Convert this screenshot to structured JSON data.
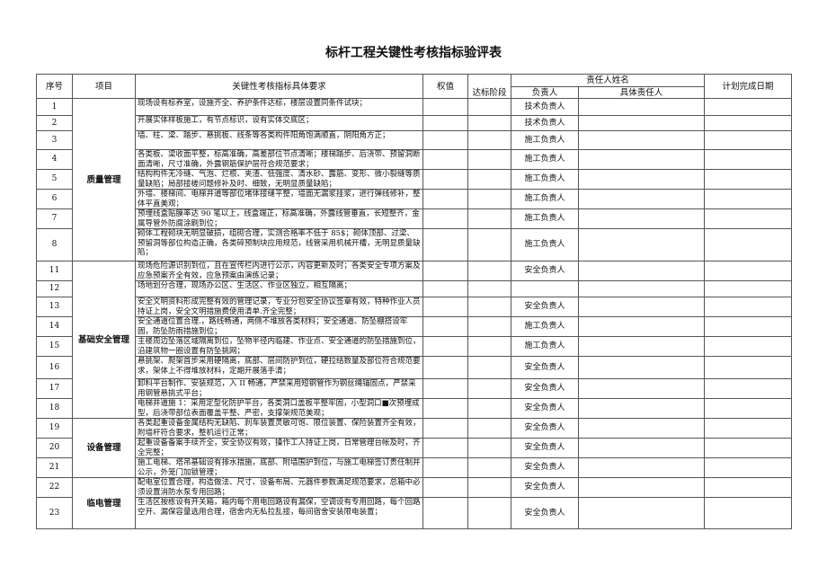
{
  "title": "标杆工程关键性考核指标验评表",
  "headers": {
    "no": "序号",
    "item": "项目",
    "req": "关键性考核指标具体要求",
    "weight": "权值",
    "stage": "达标阶段",
    "resp_group": "责任人姓名",
    "lead": "负责人",
    "specific": "具体责任人",
    "date": "计划完成日期"
  },
  "groups": [
    {
      "name": "质量管理"
    },
    {
      "name": "基础安全管理"
    },
    {
      "name": "设备管理"
    },
    {
      "name": "临电管理"
    }
  ],
  "rows": [
    {
      "no": "1",
      "req": "现场设有标养室，设施齐全、养护条件达标，楼层设置同条件试块；",
      "lead": "技术负责人"
    },
    {
      "no": "2",
      "req": "开展实体样板施工，有节点标识，设有实体交底区；",
      "lead": "技术负责人"
    },
    {
      "no": "3",
      "req": "墙、柱、梁、踏步、悬挑板、线条等各类构件阳角饱满顺直，阴阳角方正；",
      "lead": "施工负责人"
    },
    {
      "no": "4",
      "req": "各类板、梁收面平整，标高准确，高差部位节点清晰；楼梯踏步、后浇带、预留洞断面清晰，尺寸准确，外露钢筋保护层符合规范要求；",
      "lead": "施工负责人"
    },
    {
      "no": "5",
      "req": "结构构件无冷缝、气泡、烂根、夹渣、低强度、清水砂、露筋、变形、微小裂缝等质量缺陷；局部接槎问题修补及时、细致，无明显质量缺陷；",
      "lead": "施工负责人"
    },
    {
      "no": "6",
      "req": "外墙、楼梯间、电梯井道等部位堵体接缝平整，墙面无漏浆挂浆，进行弹线修补，整体平直美观；",
      "lead": "施工负责人"
    },
    {
      "no": "7",
      "req": "预埋线盒贴膜率达 90 笔以上，线盒端正，标高准确，外露线管垂直，长短整齐，金属导管外防腐涂刷到位；",
      "lead": "施工负责人"
    },
    {
      "no": "8",
      "req": "砌体工程砌块无明显破损，组砌合理，实测合格率不低于 85$；砌体顶部、过梁、预留洞等部位构造正确，各类碎预制块应用规范，线管采用机械开槽，无明显质量缺陷；",
      "lead": "施工负责人"
    },
    {
      "no": "11",
      "req": "现场危险源识别到位，且在宣传栏内进行公示，内容更新及时；各类安全专项方案及应急预案齐全有效，应急预案由演练记录；",
      "lead": "安全负责人"
    },
    {
      "no": "12",
      "req": "场地划分合理，现场办公区、生活区、作业区独立，相互隔离；",
      "lead": ""
    },
    {
      "no": "13",
      "req": "安全文明资料形成完整有效的管理记录，专业分包安全协议签章有效，特种作业人员持证上岗，安全文明措施费使用清单.齐全完整；",
      "lead": "安全负责人"
    },
    {
      "no": "14",
      "req": "安全通道位置合理.，路线畅通，两侧不堆放各类材料；安全通道、防坠棚搭设牢固，防坠防雨措施到位；",
      "lead": "施工负责人"
    },
    {
      "no": "15",
      "req": "主楼周边坠落区域隔离到位，坠物半径内临建、作业点、安全通道的防坠措施到位，沿建筑物一圈设置有防坠挑网；",
      "lead": "施工负责人"
    },
    {
      "no": "16",
      "req": "悬挑架、爬架首步采用硬隔离，底部、层间防护到位，硬拉结数量及部位符合规范要求，架体上不得堆放材料，定期开展落手清；",
      "lead": "安全负责人"
    },
    {
      "no": "17",
      "req": "卸料平台制作、安装规范，入 II 畅通，严禁采用短钢管作为钢丝绳锚固点，严禁采用钢管悬挑式平台；",
      "lead": "安全负责人"
    },
    {
      "no": "18",
      "req": "电梯井道施 1：采用定型化防护平台，各类洞口盖板平整牢固，小型洞口■次预埋成型，后浇带部位表面覆盖平整、严密，支撑架规范美观；",
      "lead": "安全负责人"
    },
    {
      "no": "19",
      "req": "各类起重设备金属结构无缺陷、刹车装置灵敏可饱、限位装置、保险装置齐全有效，附墙杆符合要求，整机运行正常；",
      "lead": "安全负责人"
    },
    {
      "no": "20",
      "req": "起重设备备案手续齐全，安全协议有效，操作工人持证上岗，日常管理台帐及时，齐全完整；",
      "lead": "安全负责人"
    },
    {
      "no": "21",
      "req": "施工电梯、塔吊基础设有排水措施，底部、附墙围护到位，与施工电梯签订责任制并公示，外笼门加锁管理；",
      "lead": "安全负责人"
    },
    {
      "no": "22",
      "req": "配电室位置合理，构造做法、尺寸、设备布局、元器件参数满足规范要求，总箱中必须设置消防水泵专用回路；",
      "lead": "安全负责人"
    },
    {
      "no": "23",
      "req": "生活区按栋设有开关箱，箱内每个用电回路设有漏保，空调设有专用回路，每个回路空开、漏保容量选用合理，宿舍内无私拉乱接，每间宿舍安装限电装置；",
      "lead": "安全负责人"
    }
  ]
}
